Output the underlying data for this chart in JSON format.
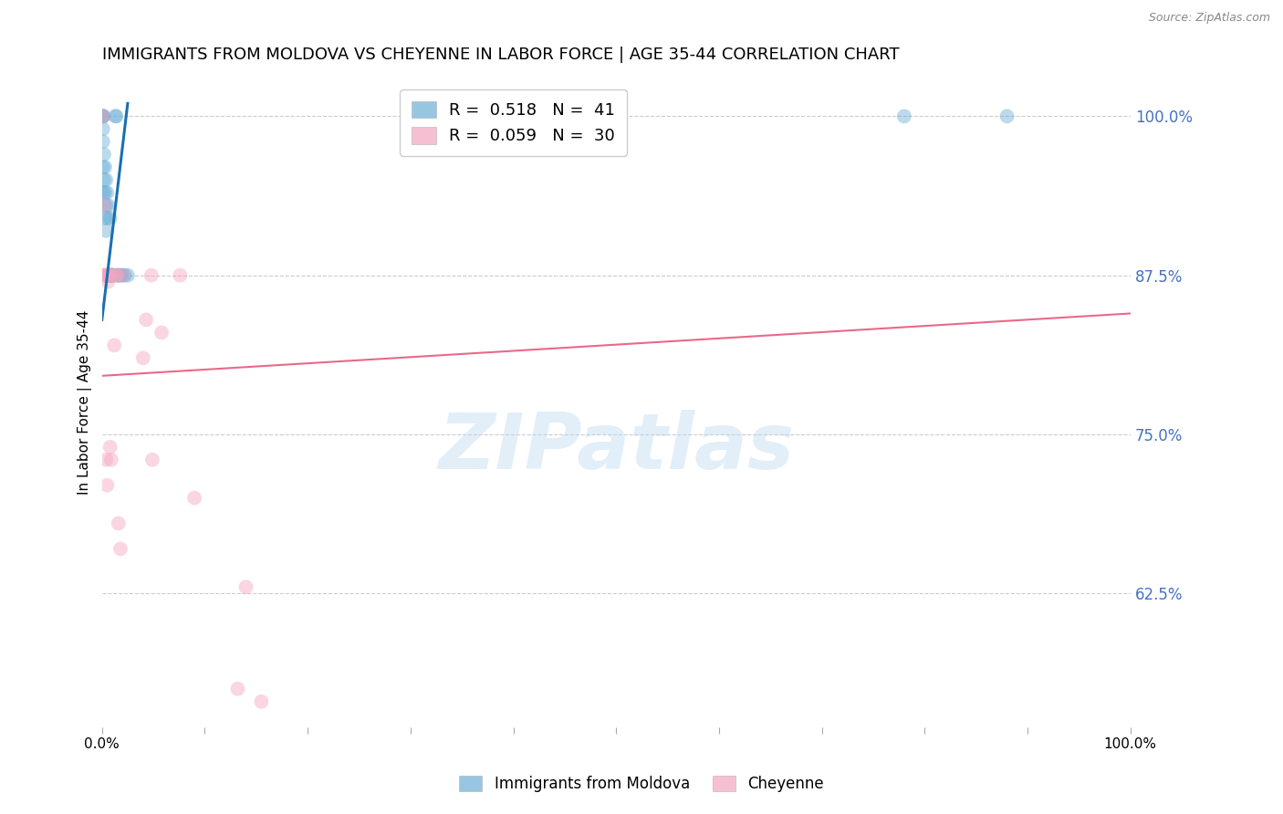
{
  "title": "IMMIGRANTS FROM MOLDOVA VS CHEYENNE IN LABOR FORCE | AGE 35-44 CORRELATION CHART",
  "source": "Source: ZipAtlas.com",
  "ylabel": "In Labor Force | Age 35-44",
  "xlim": [
    0.0,
    1.0
  ],
  "ylim": [
    0.52,
    1.03
  ],
  "yticks": [
    0.625,
    0.75,
    0.875,
    1.0
  ],
  "ytick_labels": [
    "62.5%",
    "75.0%",
    "87.5%",
    "100.0%"
  ],
  "xticks": [
    0.0,
    0.1,
    0.2,
    0.3,
    0.4,
    0.5,
    0.6,
    0.7,
    0.8,
    0.9,
    1.0
  ],
  "xtick_labels": [
    "0.0%",
    "",
    "",
    "",
    "",
    "",
    "",
    "",
    "",
    "",
    "100.0%"
  ],
  "legend_blue_R": "0.518",
  "legend_blue_N": "41",
  "legend_pink_R": "0.059",
  "legend_pink_N": "30",
  "blue_color": "#6baed6",
  "pink_color": "#f4a6c0",
  "blue_line_color": "#1a6faf",
  "pink_line_color": "#e8698a",
  "watermark_text": "ZIPatlas",
  "blue_scatter_x": [
    0.001,
    0.001,
    0.001,
    0.001,
    0.001,
    0.001,
    0.001,
    0.001,
    0.002,
    0.002,
    0.002,
    0.003,
    0.003,
    0.003,
    0.004,
    0.004,
    0.004,
    0.005,
    0.005,
    0.006,
    0.006,
    0.007,
    0.007,
    0.008,
    0.008,
    0.008,
    0.009,
    0.009,
    0.01,
    0.01,
    0.012,
    0.013,
    0.014,
    0.016,
    0.016,
    0.018,
    0.02,
    0.022,
    0.025,
    0.78,
    0.88
  ],
  "blue_scatter_y": [
    1.0,
    1.0,
    1.0,
    1.0,
    0.99,
    0.98,
    0.96,
    0.94,
    0.97,
    0.95,
    0.93,
    0.96,
    0.94,
    0.92,
    0.95,
    0.93,
    0.91,
    0.94,
    0.92,
    0.93,
    0.875,
    0.875,
    0.875,
    0.875,
    0.875,
    0.92,
    0.875,
    0.875,
    0.875,
    0.875,
    0.875,
    1.0,
    1.0,
    0.875,
    0.875,
    0.875,
    0.875,
    0.875,
    0.875,
    1.0,
    1.0
  ],
  "pink_scatter_x": [
    0.001,
    0.001,
    0.002,
    0.003,
    0.004,
    0.003,
    0.004,
    0.005,
    0.006,
    0.006,
    0.007,
    0.008,
    0.009,
    0.01,
    0.012,
    0.014,
    0.015,
    0.016,
    0.018,
    0.02,
    0.04,
    0.043,
    0.048,
    0.049,
    0.058,
    0.076,
    0.09,
    0.14,
    0.155,
    0.132
  ],
  "pink_scatter_y": [
    1.0,
    0.875,
    0.93,
    0.875,
    0.875,
    0.875,
    0.73,
    0.71,
    0.87,
    0.875,
    0.875,
    0.74,
    0.73,
    0.875,
    0.82,
    0.875,
    0.875,
    0.68,
    0.66,
    0.875,
    0.81,
    0.84,
    0.875,
    0.73,
    0.83,
    0.875,
    0.7,
    0.63,
    0.54,
    0.55
  ],
  "blue_line_x": [
    0.0,
    0.025
  ],
  "blue_line_y": [
    0.84,
    1.01
  ],
  "pink_line_x": [
    0.0,
    1.0
  ],
  "pink_line_y": [
    0.796,
    0.845
  ],
  "scatter_size": 130,
  "scatter_alpha": 0.45,
  "title_fontsize": 13,
  "axis_label_fontsize": 11,
  "tick_fontsize": 11,
  "right_tick_color": "#4472c4",
  "grid_color": "#cccccc",
  "background_color": "#ffffff"
}
